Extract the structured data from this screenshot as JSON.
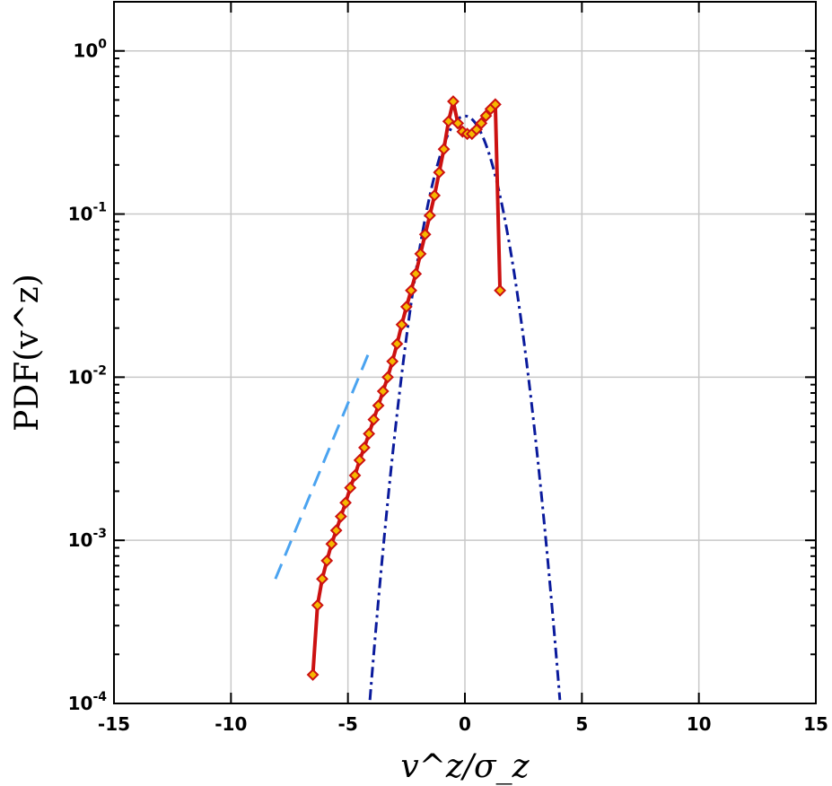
{
  "chart_data": {
    "type": "line",
    "title": "",
    "xlabel": "v^z/σ_z",
    "ylabel": "PDF(v^z)",
    "xlim": [
      -15,
      15
    ],
    "ylim": [
      0.0001,
      2
    ],
    "yscale": "log",
    "grid": true,
    "xticks": [
      -15,
      -10,
      -5,
      0,
      5,
      10,
      15
    ],
    "xtick_labels": [
      "-15",
      "-10",
      "-5",
      "0",
      "5",
      "10",
      "15"
    ],
    "yticks": [
      {
        "value": 1,
        "base": "10",
        "exp": "0"
      },
      {
        "value": 0.1,
        "base": "10",
        "exp": "-1"
      },
      {
        "value": 0.01,
        "base": "10",
        "exp": "-2"
      },
      {
        "value": 0.001,
        "base": "10",
        "exp": "-3"
      },
      {
        "value": 0.0001,
        "base": "10",
        "exp": "-4"
      }
    ],
    "series": [
      {
        "style": "solid-markers",
        "color": "#cc1111",
        "marker_color": "#f5b800",
        "x": [
          -6.5,
          -6.3,
          -6.1,
          -5.9,
          -5.7,
          -5.5,
          -5.3,
          -5.1,
          -4.9,
          -4.7,
          -4.5,
          -4.3,
          -4.1,
          -3.9,
          -3.7,
          -3.5,
          -3.3,
          -3.1,
          -2.9,
          -2.7,
          -2.5,
          -2.3,
          -2.1,
          -1.9,
          -1.7,
          -1.5,
          -1.3,
          -1.1,
          -0.9,
          -0.7,
          -0.5,
          -0.3,
          -0.1,
          0.1,
          0.3,
          0.5,
          0.7,
          0.9,
          1.1,
          1.3,
          1.5
        ],
        "y": [
          0.00015,
          0.0004,
          0.00058,
          0.00075,
          0.00095,
          0.00115,
          0.0014,
          0.0017,
          0.0021,
          0.0025,
          0.0031,
          0.0037,
          0.0045,
          0.0055,
          0.0067,
          0.0082,
          0.01,
          0.0125,
          0.016,
          0.021,
          0.027,
          0.034,
          0.043,
          0.057,
          0.075,
          0.098,
          0.13,
          0.18,
          0.25,
          0.37,
          0.49,
          0.36,
          0.32,
          0.31,
          0.31,
          0.33,
          0.36,
          0.4,
          0.44,
          0.47,
          0.034
        ]
      },
      {
        "style": "dash-dot",
        "color": "#0a1a9c",
        "function": "gaussian",
        "mean": 0,
        "sigma": 1,
        "xrange": [
          -4.1,
          4.1
        ]
      },
      {
        "style": "dashed",
        "color": "#4aa3f0",
        "x": [
          -8.1,
          -4.1
        ],
        "y": [
          0.00058,
          0.0142
        ]
      }
    ]
  }
}
